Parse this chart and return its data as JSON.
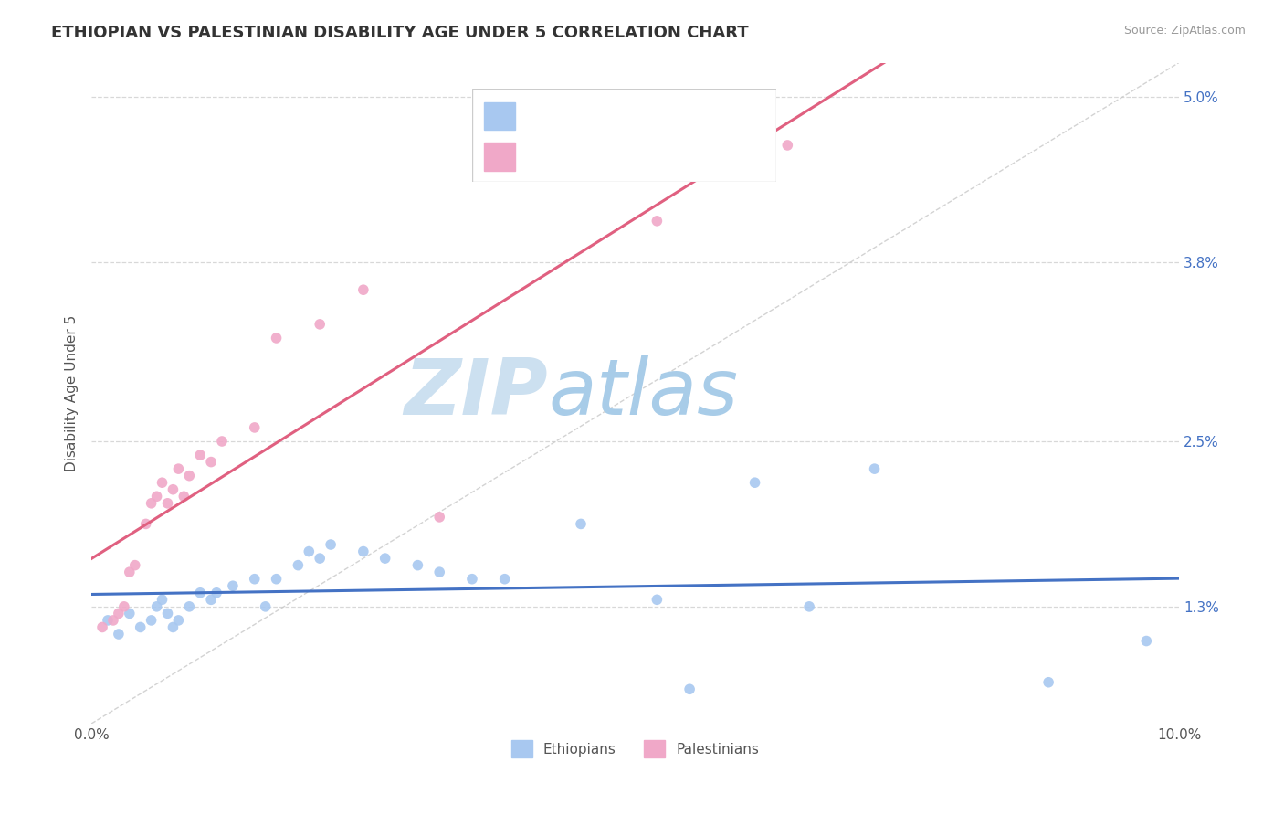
{
  "title": "ETHIOPIAN VS PALESTINIAN DISABILITY AGE UNDER 5 CORRELATION CHART",
  "source": "Source: ZipAtlas.com",
  "ylabel": "Disability Age Under 5",
  "x_min": 0.0,
  "x_max": 10.0,
  "y_min": 0.45,
  "y_max": 5.25,
  "x_ticks": [
    0.0,
    10.0
  ],
  "x_tick_labels": [
    "0.0%",
    "10.0%"
  ],
  "y_ticks": [
    1.3,
    2.5,
    3.8,
    5.0
  ],
  "y_tick_labels": [
    "1.3%",
    "2.5%",
    "3.8%",
    "5.0%"
  ],
  "legend_labels_bottom": [
    "Ethiopians",
    "Palestinians"
  ],
  "ethiopians_color": "#a8c8f0",
  "palestinians_color": "#f0a8c8",
  "trend_line_ethiopians_color": "#4472c4",
  "trend_line_palestinians_color": "#e06080",
  "ref_line_color": "#c8c8c8",
  "watermark_zip": "ZIP",
  "watermark_atlas": "atlas",
  "watermark_color_zip": "#c8dff0",
  "watermark_color_atlas": "#a8c8e8",
  "background_color": "#ffffff",
  "plot_bg_color": "#ffffff",
  "grid_color": "#d8d8d8",
  "title_fontsize": 13,
  "axis_label_fontsize": 11,
  "tick_fontsize": 11,
  "dot_size": 70,
  "ethiopians_x": [
    0.15,
    0.25,
    0.35,
    0.45,
    0.55,
    0.6,
    0.65,
    0.7,
    0.75,
    0.8,
    0.9,
    1.0,
    1.1,
    1.15,
    1.3,
    1.5,
    1.6,
    1.7,
    1.9,
    2.0,
    2.1,
    2.2,
    2.5,
    2.7,
    3.0,
    3.2,
    3.5,
    3.8,
    4.5,
    5.2,
    5.5,
    6.1,
    6.6,
    7.2,
    8.8,
    9.7
  ],
  "ethiopians_y": [
    1.2,
    1.1,
    1.25,
    1.15,
    1.2,
    1.3,
    1.35,
    1.25,
    1.15,
    1.2,
    1.3,
    1.4,
    1.35,
    1.4,
    1.45,
    1.5,
    1.3,
    1.5,
    1.6,
    1.7,
    1.65,
    1.75,
    1.7,
    1.65,
    1.6,
    1.55,
    1.5,
    1.5,
    1.9,
    1.35,
    0.7,
    2.2,
    1.3,
    2.3,
    0.75,
    1.05
  ],
  "palestinians_x": [
    0.1,
    0.2,
    0.25,
    0.3,
    0.35,
    0.4,
    0.5,
    0.55,
    0.6,
    0.65,
    0.7,
    0.75,
    0.8,
    0.85,
    0.9,
    1.0,
    1.1,
    1.2,
    1.5,
    1.7,
    2.1,
    2.5,
    3.2,
    5.2,
    6.4
  ],
  "palestinians_y": [
    1.15,
    1.2,
    1.25,
    1.3,
    1.55,
    1.6,
    1.9,
    2.05,
    2.1,
    2.2,
    2.05,
    2.15,
    2.3,
    2.1,
    2.25,
    2.4,
    2.35,
    2.5,
    2.6,
    3.25,
    3.35,
    3.6,
    1.95,
    4.1,
    4.65
  ]
}
